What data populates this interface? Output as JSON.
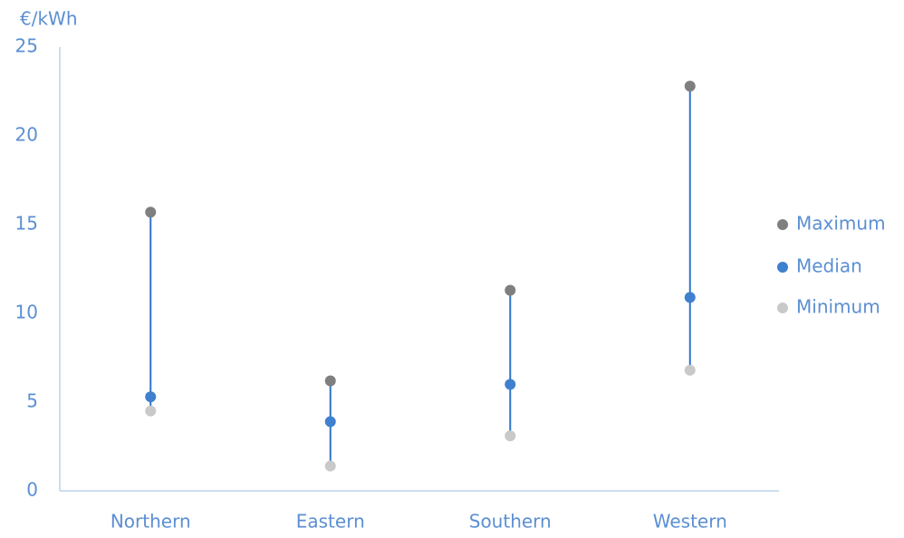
{
  "chart_data": {
    "type": "dot",
    "y_label": "€/kWh",
    "categories": [
      "Northern",
      "Eastern",
      "Southern",
      "Western"
    ],
    "series": [
      {
        "name": "Maximum",
        "color": "#7f7f7f",
        "values": [
          15.7,
          6.2,
          11.3,
          22.8
        ]
      },
      {
        "name": "Median",
        "color": "#3f80cf",
        "values": [
          5.3,
          3.9,
          6.0,
          10.9
        ]
      },
      {
        "name": "Minimum",
        "color": "#c9c9c9",
        "values": [
          4.5,
          1.4,
          3.1,
          6.8
        ]
      }
    ],
    "range_line_color": "#2e75c8",
    "ylim": [
      0,
      25
    ],
    "yticks": [
      0,
      5,
      10,
      15,
      20,
      25
    ],
    "grid": false,
    "legend": "right"
  }
}
